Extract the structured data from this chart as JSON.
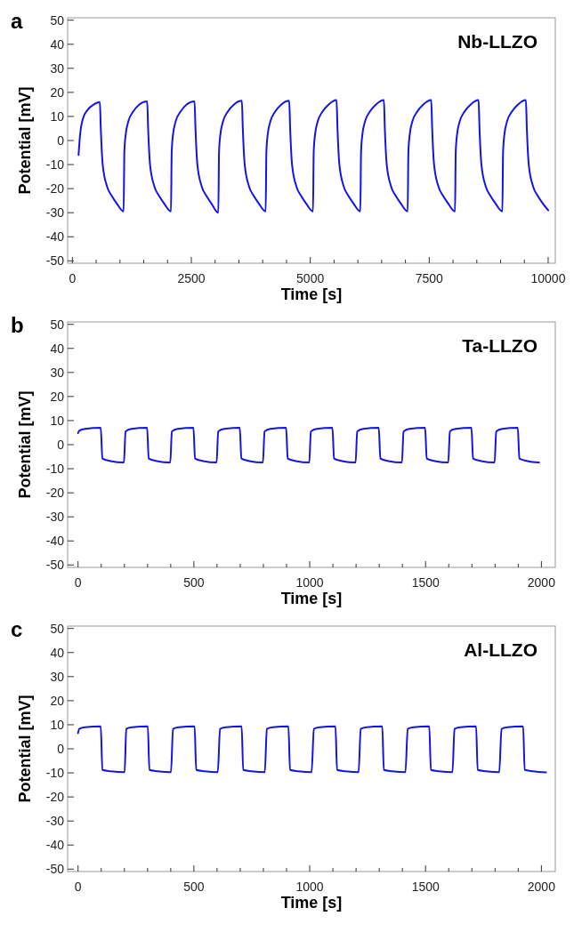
{
  "chart_data": [
    {
      "type": "line",
      "xlabel": "Time [s]",
      "ylabel": "Potential [mV]",
      "annotations": [
        "a",
        "Nb-LLZO"
      ],
      "xlim": [
        -100,
        10150
      ],
      "ylim": [
        -51,
        51
      ],
      "xticks": [
        0,
        {
          "value": 500,
          "label": null
        },
        {
          "value": 1000,
          "label": null
        },
        {
          "value": 1500,
          "label": null
        },
        {
          "value": 2000,
          "label": null
        },
        2500,
        {
          "value": 3000,
          "label": null
        },
        {
          "value": 3500,
          "label": null
        },
        {
          "value": 4000,
          "label": null
        },
        {
          "value": 4500,
          "label": null
        },
        5000,
        {
          "value": 5500,
          "label": null
        },
        {
          "value": 6000,
          "label": null
        },
        {
          "value": 6500,
          "label": null
        },
        {
          "value": 7000,
          "label": null
        },
        7500,
        {
          "value": 8000,
          "label": null
        },
        {
          "value": 8500,
          "label": null
        },
        {
          "value": 9000,
          "label": null
        },
        {
          "value": 9500,
          "label": null
        },
        10000
      ],
      "yticks": [
        -50,
        -40,
        -30,
        -20,
        -10,
        0,
        10,
        20,
        30,
        40,
        50
      ],
      "series": [
        {
          "color": "#1414e6",
          "x": [
            130,
            160,
            220,
            330,
            450,
            577,
            597,
            637,
            727,
            827,
            927,
            1077,
            1092,
            1117,
            1177,
            1277,
            1407,
            1572,
            1592,
            1632,
            1722,
            1822,
            1922,
            2072,
            2087,
            2112,
            2172,
            2272,
            2402,
            2567,
            2587,
            2627,
            2717,
            2817,
            2917,
            3067,
            3082,
            3107,
            3167,
            3267,
            3397,
            3562,
            3582,
            3622,
            3712,
            3812,
            3912,
            4062,
            4077,
            4102,
            4162,
            4262,
            4392,
            4557,
            4577,
            4617,
            4707,
            4807,
            4907,
            5057,
            5072,
            5097,
            5157,
            5257,
            5387,
            5552,
            5572,
            5612,
            5702,
            5802,
            5902,
            6052,
            6067,
            6092,
            6152,
            6252,
            6382,
            6547,
            6567,
            6607,
            6697,
            6797,
            6897,
            7047,
            7062,
            7087,
            7147,
            7247,
            7377,
            7542,
            7562,
            7602,
            7692,
            7792,
            7892,
            8042,
            8057,
            8082,
            8142,
            8242,
            8372,
            8537,
            8557,
            8597,
            8687,
            8787,
            8887,
            9037,
            9052,
            9077,
            9137,
            9237,
            9367,
            9532,
            9552,
            9592,
            9682,
            9782,
            9882,
            10000
          ],
          "values": [
            -6,
            2,
            9,
            13,
            15,
            16,
            5,
            -10,
            -19,
            -23,
            -26,
            -29.5,
            -5,
            2,
            8,
            12,
            15,
            16.3,
            5,
            -10,
            -19,
            -23,
            -26,
            -29.5,
            -5,
            2,
            8,
            12,
            15,
            16.3,
            5,
            -10,
            -19,
            -23,
            -26,
            -30,
            -5,
            2,
            8,
            12,
            15,
            16.5,
            5,
            -10,
            -19,
            -23,
            -26,
            -29.5,
            -5,
            2,
            8,
            12,
            15,
            16.5,
            5,
            -10,
            -19,
            -23,
            -26,
            -29.5,
            -5,
            2,
            8,
            12,
            15,
            16.8,
            5,
            -10,
            -19,
            -23,
            -26,
            -29.5,
            -5,
            2,
            8,
            12,
            15,
            16.8,
            5,
            -10,
            -19,
            -23,
            -26,
            -29.5,
            -5,
            2,
            8,
            12,
            15,
            16.8,
            5,
            -10,
            -19,
            -23,
            -26,
            -29.5,
            -5,
            2,
            8,
            12,
            15,
            16.8,
            5,
            -10,
            -19,
            -23,
            -26,
            -29.5,
            -5,
            2,
            8,
            12,
            15,
            16.8,
            5,
            -10,
            -19,
            -23,
            -26,
            -29
          ]
        }
      ]
    },
    {
      "type": "line",
      "xlabel": "Time [s]",
      "ylabel": "Potential [mV]",
      "annotations": [
        "b",
        "Ta-LLZO"
      ],
      "xlim": [
        -45,
        2060
      ],
      "ylim": [
        -51,
        51
      ],
      "xticks": [
        0,
        {
          "value": 100,
          "label": null
        },
        {
          "value": 200,
          "label": null
        },
        {
          "value": 300,
          "label": null
        },
        {
          "value": 400,
          "label": null
        },
        500,
        {
          "value": 600,
          "label": null
        },
        {
          "value": 700,
          "label": null
        },
        {
          "value": 800,
          "label": null
        },
        {
          "value": 900,
          "label": null
        },
        1000,
        {
          "value": 1100,
          "label": null
        },
        {
          "value": 1200,
          "label": null
        },
        {
          "value": 1300,
          "label": null
        },
        {
          "value": 1400,
          "label": null
        },
        1500,
        {
          "value": 1600,
          "label": null
        },
        {
          "value": 1700,
          "label": null
        },
        {
          "value": 1800,
          "label": null
        },
        {
          "value": 1900,
          "label": null
        },
        2000
      ],
      "yticks": [
        -50,
        -40,
        -30,
        -20,
        -10,
        0,
        10,
        20,
        30,
        40,
        50
      ],
      "series": [
        {
          "color": "#1414e6",
          "x": [
            0,
            5,
            30,
            98,
            105,
            140,
            198,
            205,
            230,
            298,
            305,
            340,
            398,
            405,
            430,
            498,
            505,
            540,
            598,
            605,
            630,
            698,
            705,
            740,
            798,
            805,
            830,
            898,
            905,
            940,
            998,
            1005,
            1030,
            1098,
            1105,
            1140,
            1198,
            1205,
            1230,
            1298,
            1305,
            1340,
            1398,
            1405,
            1430,
            1498,
            1505,
            1540,
            1598,
            1605,
            1630,
            1698,
            1705,
            1740,
            1798,
            1805,
            1830,
            1898,
            1905,
            1940,
            1990
          ],
          "values": [
            4.8,
            5.8,
            6.6,
            7,
            -5.8,
            -6.8,
            -7.4,
            5.5,
            6.6,
            7,
            -5.8,
            -6.8,
            -7.4,
            5.5,
            6.6,
            7,
            -5.8,
            -6.8,
            -7.4,
            5.5,
            6.6,
            7,
            -5.8,
            -6.8,
            -7.4,
            5.5,
            6.6,
            7,
            -5.8,
            -6.8,
            -7.4,
            5.5,
            6.6,
            7,
            -5.8,
            -6.8,
            -7.4,
            5.5,
            6.6,
            7,
            -5.8,
            -6.8,
            -7.4,
            5.5,
            6.6,
            7,
            -5.8,
            -6.8,
            -7.4,
            5.5,
            6.6,
            7,
            -5.8,
            -6.8,
            -7.4,
            5.5,
            6.6,
            7,
            -5.8,
            -6.8,
            -7.4
          ]
        }
      ]
    },
    {
      "type": "line",
      "xlabel": "Time [s]",
      "ylabel": "Potential [mV]",
      "annotations": [
        "c",
        "Al-LLZO"
      ],
      "xlim": [
        -45,
        2060
      ],
      "ylim": [
        -51,
        51
      ],
      "xticks": [
        0,
        {
          "value": 100,
          "label": null
        },
        {
          "value": 200,
          "label": null
        },
        {
          "value": 300,
          "label": null
        },
        {
          "value": 400,
          "label": null
        },
        500,
        {
          "value": 600,
          "label": null
        },
        {
          "value": 700,
          "label": null
        },
        {
          "value": 800,
          "label": null
        },
        {
          "value": 900,
          "label": null
        },
        1000,
        {
          "value": 1100,
          "label": null
        },
        {
          "value": 1200,
          "label": null
        },
        {
          "value": 1300,
          "label": null
        },
        {
          "value": 1400,
          "label": null
        },
        1500,
        {
          "value": 1600,
          "label": null
        },
        {
          "value": 1700,
          "label": null
        },
        {
          "value": 1800,
          "label": null
        },
        {
          "value": 1900,
          "label": null
        },
        2000
      ],
      "yticks": [
        -50,
        -40,
        -30,
        -20,
        -10,
        0,
        10,
        20,
        30,
        40,
        50
      ],
      "series": [
        {
          "color": "#1414e6",
          "x": [
            0,
            5,
            30,
            98,
            105,
            140,
            201,
            208,
            233,
            301,
            308,
            343,
            401,
            410,
            435,
            503,
            510,
            545,
            603,
            613,
            638,
            706,
            713,
            748,
            806,
            815,
            840,
            908,
            915,
            950,
            1008,
            1018,
            1043,
            1111,
            1118,
            1153,
            1211,
            1220,
            1245,
            1313,
            1320,
            1355,
            1413,
            1423,
            1448,
            1516,
            1523,
            1558,
            1616,
            1625,
            1650,
            1718,
            1725,
            1760,
            1818,
            1828,
            1853,
            1921,
            1928,
            1963,
            2020
          ],
          "values": [
            6.5,
            8.3,
            9,
            9.3,
            -8.8,
            -9.3,
            -9.7,
            8.3,
            9,
            9.3,
            -8.8,
            -9.3,
            -9.7,
            8.3,
            9,
            9.3,
            -8.8,
            -9.3,
            -9.7,
            8.3,
            9,
            9.3,
            -8.8,
            -9.3,
            -9.7,
            8.3,
            9,
            9.3,
            -8.8,
            -9.3,
            -9.7,
            8.3,
            9,
            9.3,
            -8.8,
            -9.3,
            -9.7,
            8.3,
            9,
            9.3,
            -8.8,
            -9.3,
            -9.7,
            8.3,
            9,
            9.3,
            -8.8,
            -9.3,
            -9.7,
            8.3,
            9,
            9.3,
            -8.8,
            -9.3,
            -9.7,
            8.3,
            9,
            9.3,
            -8.8,
            -9.3,
            -9.8
          ]
        }
      ]
    }
  ]
}
